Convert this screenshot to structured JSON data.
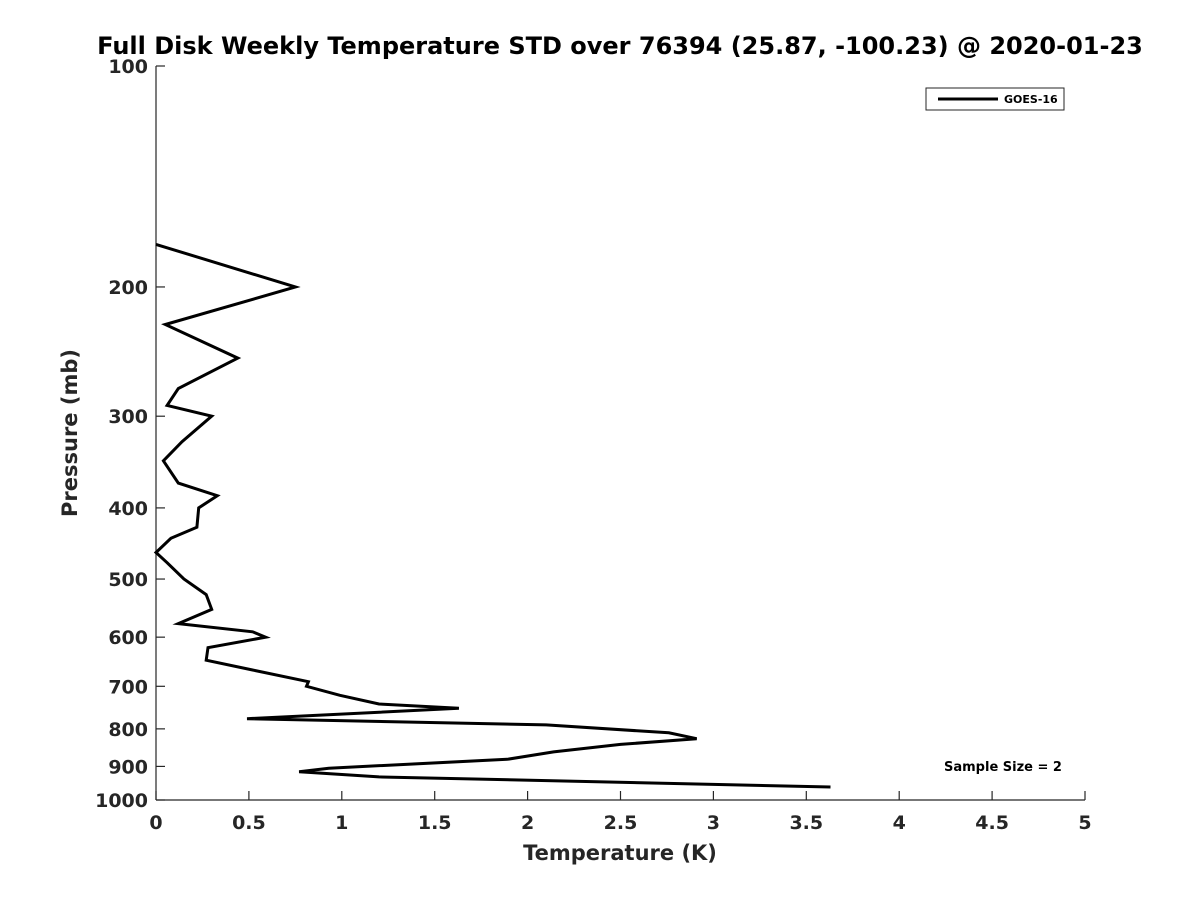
{
  "chart_data": {
    "type": "line",
    "title": "Full Disk Weekly Temperature STD over 76394 (25.87, -100.23) @ 2020-01-23",
    "xlabel": "Temperature (K)",
    "ylabel": "Pressure (mb)",
    "xlim": [
      0,
      5
    ],
    "ylim": [
      100,
      1000
    ],
    "y_scale": "log",
    "y_reversed": true,
    "x_ticks": [
      "0",
      "0.5",
      "1",
      "1.5",
      "2",
      "2.5",
      "3",
      "3.5",
      "4",
      "4.5",
      "5"
    ],
    "x_tick_values": [
      0,
      0.5,
      1,
      1.5,
      2,
      2.5,
      3,
      3.5,
      4,
      4.5,
      5
    ],
    "y_ticks": [
      "100",
      "200",
      "300",
      "400",
      "500",
      "600",
      "700",
      "800",
      "900",
      "1000"
    ],
    "y_tick_values": [
      100,
      200,
      300,
      400,
      500,
      600,
      700,
      800,
      900,
      1000
    ],
    "grid": false,
    "legend_position": "top-right",
    "line_color": "#000000",
    "series": [
      {
        "name": "GOES-16",
        "points": [
          [
            0.0,
            175
          ],
          [
            0.75,
            200
          ],
          [
            0.05,
            225
          ],
          [
            0.44,
            250
          ],
          [
            0.12,
            275
          ],
          [
            0.06,
            290
          ],
          [
            0.3,
            300
          ],
          [
            0.14,
            325
          ],
          [
            0.04,
            345
          ],
          [
            0.12,
            370
          ],
          [
            0.33,
            385
          ],
          [
            0.23,
            400
          ],
          [
            0.22,
            425
          ],
          [
            0.08,
            440
          ],
          [
            0.0,
            460
          ],
          [
            0.06,
            475
          ],
          [
            0.15,
            500
          ],
          [
            0.27,
            525
          ],
          [
            0.3,
            550
          ],
          [
            0.12,
            575
          ],
          [
            0.52,
            590
          ],
          [
            0.59,
            600
          ],
          [
            0.28,
            620
          ],
          [
            0.27,
            645
          ],
          [
            0.52,
            665
          ],
          [
            0.82,
            690
          ],
          [
            0.81,
            700
          ],
          [
            0.99,
            720
          ],
          [
            1.2,
            740
          ],
          [
            1.63,
            750
          ],
          [
            0.49,
            775
          ],
          [
            2.1,
            790
          ],
          [
            2.76,
            810
          ],
          [
            2.91,
            825
          ],
          [
            2.5,
            840
          ],
          [
            2.14,
            860
          ],
          [
            1.89,
            880
          ],
          [
            0.93,
            905
          ],
          [
            0.77,
            915
          ],
          [
            1.2,
            930
          ],
          [
            3.63,
            960
          ]
        ]
      }
    ],
    "annotation": "Sample Size = 2"
  }
}
